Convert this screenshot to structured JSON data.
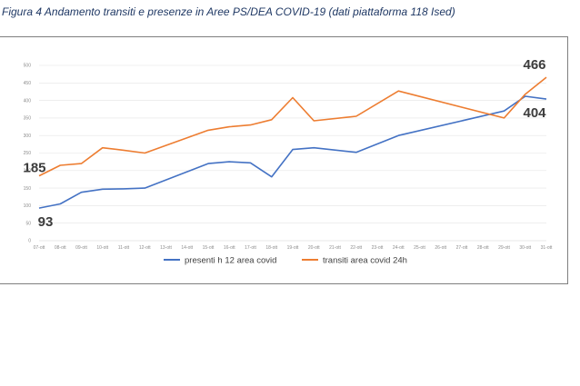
{
  "caption": "Figura 4 Andamento transiti e presenze in Aree PS/DEA COVID-19 (dati piattaforma 118 Ised)",
  "chart_data": {
    "type": "line",
    "categories": [
      "07-ott",
      "08-ott",
      "09-ott",
      "10-ott",
      "11-ott",
      "12-ott",
      "13-ott",
      "14-ott",
      "15-ott",
      "16-ott",
      "17-ott",
      "18-ott",
      "19-ott",
      "20-ott",
      "21-ott",
      "22-ott",
      "23-ott",
      "24-ott",
      "25-ott",
      "26-ott",
      "27-ott",
      "28-ott",
      "29-ott",
      "30-ott",
      "31-ott"
    ],
    "yticks": [
      0,
      50,
      100,
      150,
      200,
      250,
      300,
      350,
      400,
      450,
      500
    ],
    "ylim": [
      0,
      500
    ],
    "grid": true,
    "legend_position": "bottom",
    "series": [
      {
        "name": "presenti h 12 area covid",
        "color": "#4472c4",
        "values": [
          93,
          105,
          138,
          147,
          148,
          150,
          null,
          null,
          220,
          225,
          222,
          182,
          260,
          265,
          null,
          252,
          null,
          300,
          null,
          null,
          null,
          null,
          370,
          412,
          404
        ]
      },
      {
        "name": "transiti area covid 24h",
        "color": "#ed7d31",
        "values": [
          185,
          215,
          220,
          265,
          258,
          250,
          null,
          null,
          315,
          325,
          330,
          345,
          408,
          342,
          null,
          355,
          null,
          427,
          null,
          null,
          null,
          null,
          350,
          418,
          466
        ]
      }
    ],
    "callouts": [
      {
        "text": "185",
        "series": 1,
        "index": 0,
        "pos": "left"
      },
      {
        "text": "93",
        "series": 0,
        "index": 0,
        "pos": "below"
      },
      {
        "text": "466",
        "series": 1,
        "index": 24,
        "pos": "above"
      },
      {
        "text": "404",
        "series": 0,
        "index": 24,
        "pos": "below"
      }
    ]
  }
}
